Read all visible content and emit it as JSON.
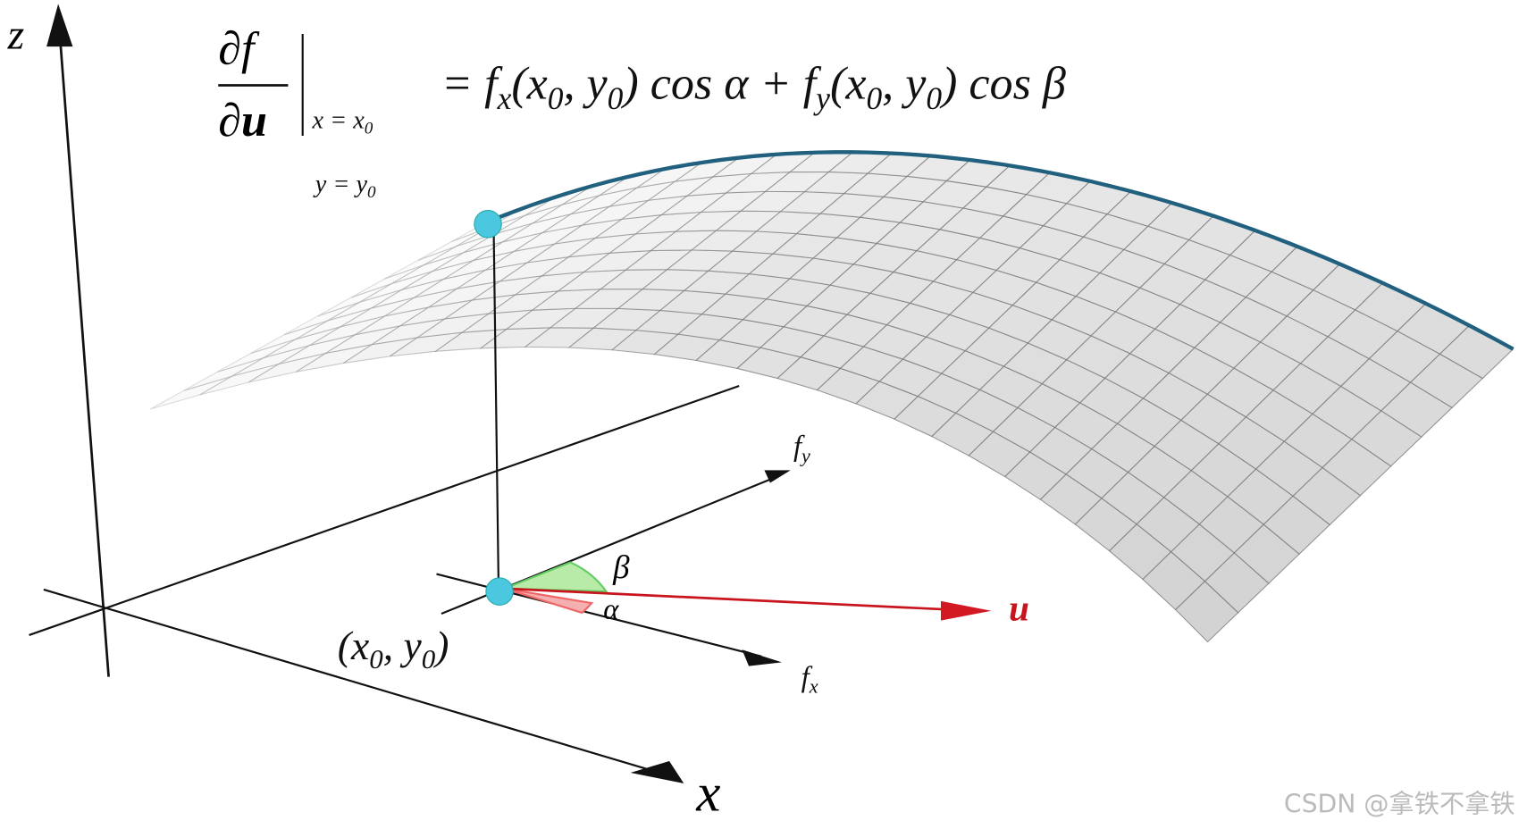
{
  "axes": {
    "z": "z",
    "x": "x"
  },
  "formula": {
    "numerator": "∂f",
    "denominator": "∂u",
    "cond1": [
      "x = x",
      "0"
    ],
    "cond2": [
      "y = y",
      "0"
    ],
    "rhs": [
      "= f",
      "x",
      "(x",
      "0",
      ", y",
      "0",
      ") cos α + f",
      "y",
      "(x",
      "0",
      ", y",
      "0",
      ") cos β"
    ]
  },
  "point_label": [
    "(x",
    "0",
    ", y",
    "0",
    ")"
  ],
  "fy_label": [
    "f",
    "y"
  ],
  "fx_label": [
    "f",
    "x"
  ],
  "beta": "β",
  "alpha": "α",
  "u": "u",
  "watermark": "CSDN @拿铁不拿铁"
}
